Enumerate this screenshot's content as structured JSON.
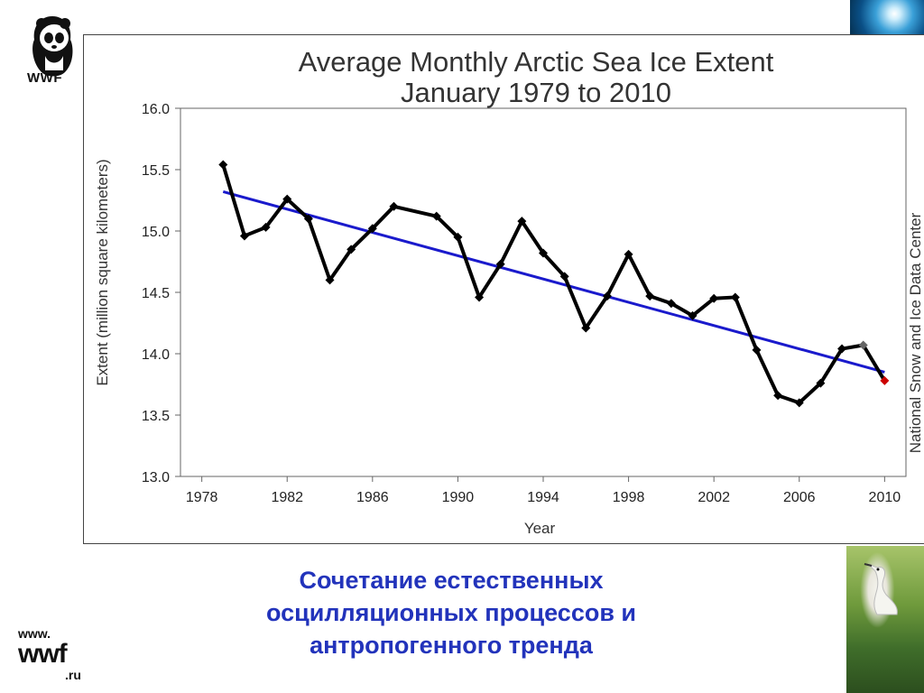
{
  "logo": {
    "text": "WWF"
  },
  "chart_data": {
    "type": "line",
    "title": "Average Monthly Arctic Sea Ice Extent",
    "subtitle": "January 1979 to 2010",
    "xlabel": "Year",
    "ylabel": "Extent (million square kilometers)",
    "source_label": "National Snow and Ice Data Center",
    "xlim": [
      1977,
      2011
    ],
    "ylim": [
      13.0,
      16.0
    ],
    "xticks": [
      "1978",
      "1982",
      "1986",
      "1990",
      "1994",
      "1998",
      "2002",
      "2006",
      "2010"
    ],
    "yticks": [
      "13.0",
      "13.5",
      "14.0",
      "14.5",
      "15.0",
      "15.5",
      "16.0"
    ],
    "grid": false,
    "x": [
      1979,
      1980,
      1981,
      1982,
      1983,
      1984,
      1985,
      1986,
      1987,
      1989,
      1990,
      1991,
      1992,
      1993,
      1994,
      1995,
      1996,
      1997,
      1998,
      1999,
      2000,
      2001,
      2002,
      2003,
      2004,
      2005,
      2006,
      2007,
      2008,
      2009,
      2010
    ],
    "series": [
      {
        "values": [
          15.54,
          14.96,
          15.03,
          15.26,
          15.1,
          14.6,
          14.85,
          15.02,
          15.2,
          15.12,
          14.95,
          14.46,
          14.73,
          15.08,
          14.82,
          14.63,
          14.21,
          14.47,
          14.81,
          14.47,
          14.41,
          14.31,
          14.45,
          14.46,
          14.03,
          13.66,
          13.6,
          13.76,
          14.04,
          14.07,
          13.78
        ],
        "color": "#000000"
      }
    ],
    "highlight_points": [
      {
        "x": 2009,
        "y": 14.07,
        "color": "#666666"
      },
      {
        "x": 2010,
        "y": 13.78,
        "color": "#cc0000"
      }
    ],
    "trendline": {
      "x": [
        1979,
        2010
      ],
      "y": [
        15.32,
        13.85
      ],
      "color": "#1a1acc"
    }
  },
  "caption": {
    "line1": "Сочетание естественных",
    "line2": "осцилляционных процессов и",
    "line3": "антропогенного тренда"
  },
  "site_logo": {
    "prefix": "www.",
    "name": "wwf",
    "suffix": ".ru"
  }
}
